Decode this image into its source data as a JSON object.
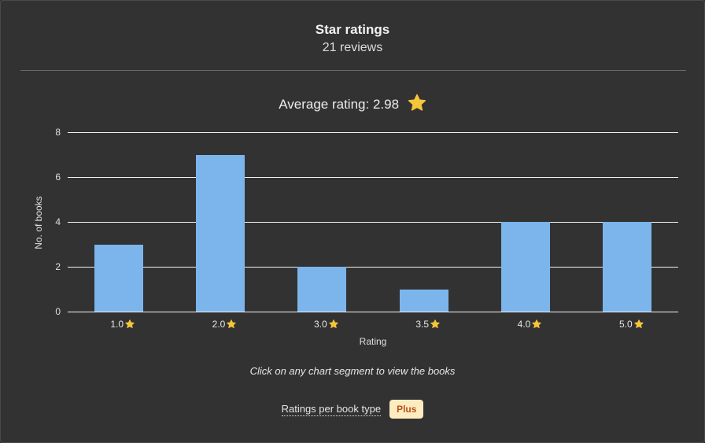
{
  "header": {
    "title": "Star ratings",
    "subtitle": "21 reviews",
    "average_label": "Average rating: 2.98",
    "average_icon": "star-icon"
  },
  "chart_data": {
    "type": "bar",
    "title": "Average rating: 2.98",
    "categories": [
      "1.0",
      "2.0",
      "3.0",
      "3.5",
      "4.0",
      "5.0"
    ],
    "values": [
      3,
      7,
      2,
      1,
      4,
      4
    ],
    "xlabel": "Rating",
    "ylabel": "No. of books",
    "ylim": [
      0,
      8
    ],
    "yticks": [
      "8",
      "6",
      "4",
      "2",
      "0"
    ],
    "grid": true,
    "bar_color": "#7cb5ec",
    "tick_icon": "star-icon"
  },
  "hint": "Click on any chart segment to view the books",
  "footer": {
    "link_label": "Ratings per book type",
    "badge_label": "Plus",
    "badge_bg": "#fdecc0",
    "badge_color": "#b5501c"
  },
  "colors": {
    "background": "#323232",
    "star": "#f5c53a"
  }
}
